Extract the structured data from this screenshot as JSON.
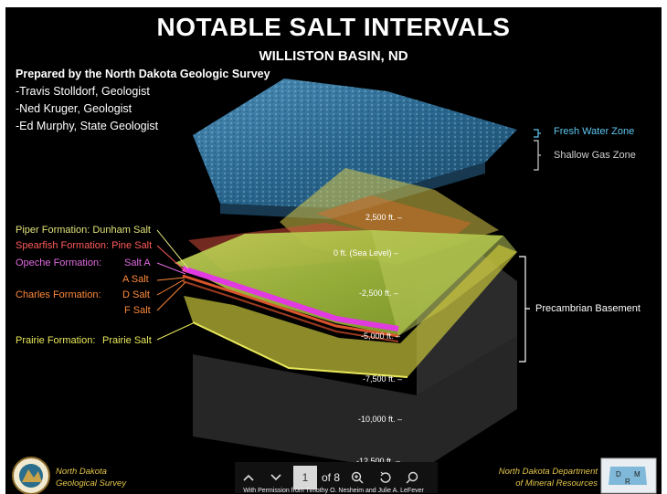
{
  "title": "NOTABLE SALT INTERVALS",
  "subtitle": "WILLISTON BASIN, ND",
  "prepared": {
    "heading": "Prepared by the North Dakota Geologic Survey",
    "authors": [
      "-Travis Stolldorf, Geologist",
      "-Ned Kruger, Geologist",
      "-Ed Murphy, State Geologist"
    ]
  },
  "formations": {
    "piper": "Piper Formation: Dunham Salt",
    "spearfish": "Spearfish Formation: Pine Salt",
    "opeche": "Opeche Formation:",
    "salt_a_opeche": "Salt A",
    "a_salt": "A Salt",
    "charles": "Charles Formation:",
    "d_salt": "D Salt",
    "f_salt": "F Salt",
    "prairie": "Prairie Formation:",
    "prairie_salt": "Prairie Salt"
  },
  "depths": [
    "2,500 ft. –",
    "0 ft. (Sea Level) –",
    "-2,500 ft. –",
    "-5,000 ft. –",
    "-7,500 ft. –",
    "-10,000 ft. –",
    "-12,500 ft. –"
  ],
  "zones": {
    "fresh": "Fresh Water Zone",
    "gas": "Shallow Gas Zone",
    "basement": "Precambrian Basement"
  },
  "logos": {
    "left_line1": "North Dakota",
    "left_line2": "Geological Survey",
    "right_line1": "North Dakota Department",
    "right_line2": "of Mineral Resources"
  },
  "toolbar": {
    "page": "1",
    "of": "of 8",
    "icons": [
      "chevron-up-icon",
      "chevron-down-icon",
      "zoom-in-icon",
      "rotate-icon",
      "search-icon"
    ]
  },
  "credit": "With Permission from Timothy O. Nesheim and Julie A. LeFever",
  "colors": {
    "piper": "#e2e37a",
    "spearfish": "#ff5a5a",
    "opeche": "#e06be0",
    "charles": "#ff8a3a",
    "prairie": "#e8e85a",
    "fresh": "#5fc7f2",
    "logo_text": "#e4c64a"
  }
}
